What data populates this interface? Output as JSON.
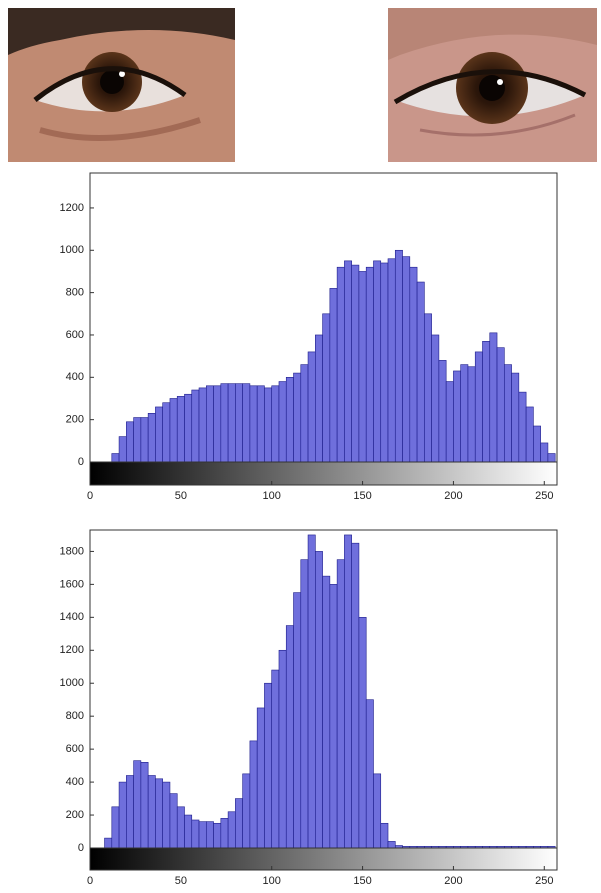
{
  "chart_data": [
    {
      "type": "histogram",
      "bins": [
        0,
        4,
        8,
        12,
        16,
        20,
        24,
        28,
        32,
        36,
        40,
        44,
        48,
        52,
        56,
        60,
        64,
        68,
        72,
        76,
        80,
        84,
        88,
        92,
        96,
        100,
        104,
        108,
        112,
        116,
        120,
        124,
        128,
        132,
        136,
        140,
        144,
        148,
        152,
        156,
        160,
        164,
        168,
        172,
        176,
        180,
        184,
        188,
        192,
        196,
        200,
        204,
        208,
        212,
        216,
        220,
        224,
        228,
        232,
        236,
        240,
        244,
        248,
        252,
        256
      ],
      "counts": [
        0,
        0,
        0,
        40,
        120,
        190,
        210,
        210,
        230,
        260,
        280,
        300,
        310,
        320,
        340,
        350,
        360,
        360,
        370,
        370,
        370,
        370,
        360,
        360,
        350,
        360,
        380,
        400,
        420,
        460,
        520,
        600,
        700,
        820,
        920,
        950,
        930,
        900,
        920,
        950,
        940,
        960,
        1000,
        970,
        920,
        850,
        700,
        600,
        480,
        380,
        430,
        460,
        450,
        520,
        570,
        610,
        540,
        460,
        420,
        330,
        260,
        170,
        90,
        40
      ],
      "color": "#6f6fdc",
      "xlim": [
        0,
        257
      ],
      "ylim": [
        0,
        1365
      ],
      "xticks": [
        0,
        50,
        100,
        150,
        200,
        250
      ],
      "yticks": [
        0,
        200,
        400,
        600,
        800,
        1000,
        1200
      ]
    },
    {
      "type": "histogram",
      "bins": [
        0,
        4,
        8,
        12,
        16,
        20,
        24,
        28,
        32,
        36,
        40,
        44,
        48,
        52,
        56,
        60,
        64,
        68,
        72,
        76,
        80,
        84,
        88,
        92,
        96,
        100,
        104,
        108,
        112,
        116,
        120,
        124,
        128,
        132,
        136,
        140,
        144,
        148,
        152,
        156,
        160,
        164,
        168,
        172,
        176,
        180,
        184,
        188,
        192,
        196,
        200,
        204,
        208,
        212,
        216,
        220,
        224,
        228,
        232,
        236,
        240,
        244,
        248,
        252,
        256
      ],
      "counts": [
        0,
        0,
        60,
        250,
        400,
        440,
        530,
        520,
        440,
        420,
        400,
        330,
        250,
        200,
        170,
        160,
        160,
        150,
        180,
        220,
        300,
        450,
        650,
        850,
        1000,
        1080,
        1200,
        1350,
        1550,
        1750,
        1900,
        1800,
        1650,
        1600,
        1750,
        1900,
        1850,
        1400,
        900,
        450,
        150,
        40,
        15,
        10,
        10,
        10,
        10,
        10,
        10,
        10,
        10,
        10,
        10,
        10,
        10,
        10,
        10,
        10,
        10,
        10,
        10,
        10,
        10,
        10
      ],
      "color": "#6f6fdc",
      "xlim": [
        0,
        257
      ],
      "ylim": [
        0,
        1930
      ],
      "xticks": [
        0,
        50,
        100,
        150,
        200,
        250
      ],
      "yticks": [
        0,
        200,
        400,
        600,
        800,
        1000,
        1200,
        1400,
        1600,
        1800
      ]
    }
  ]
}
